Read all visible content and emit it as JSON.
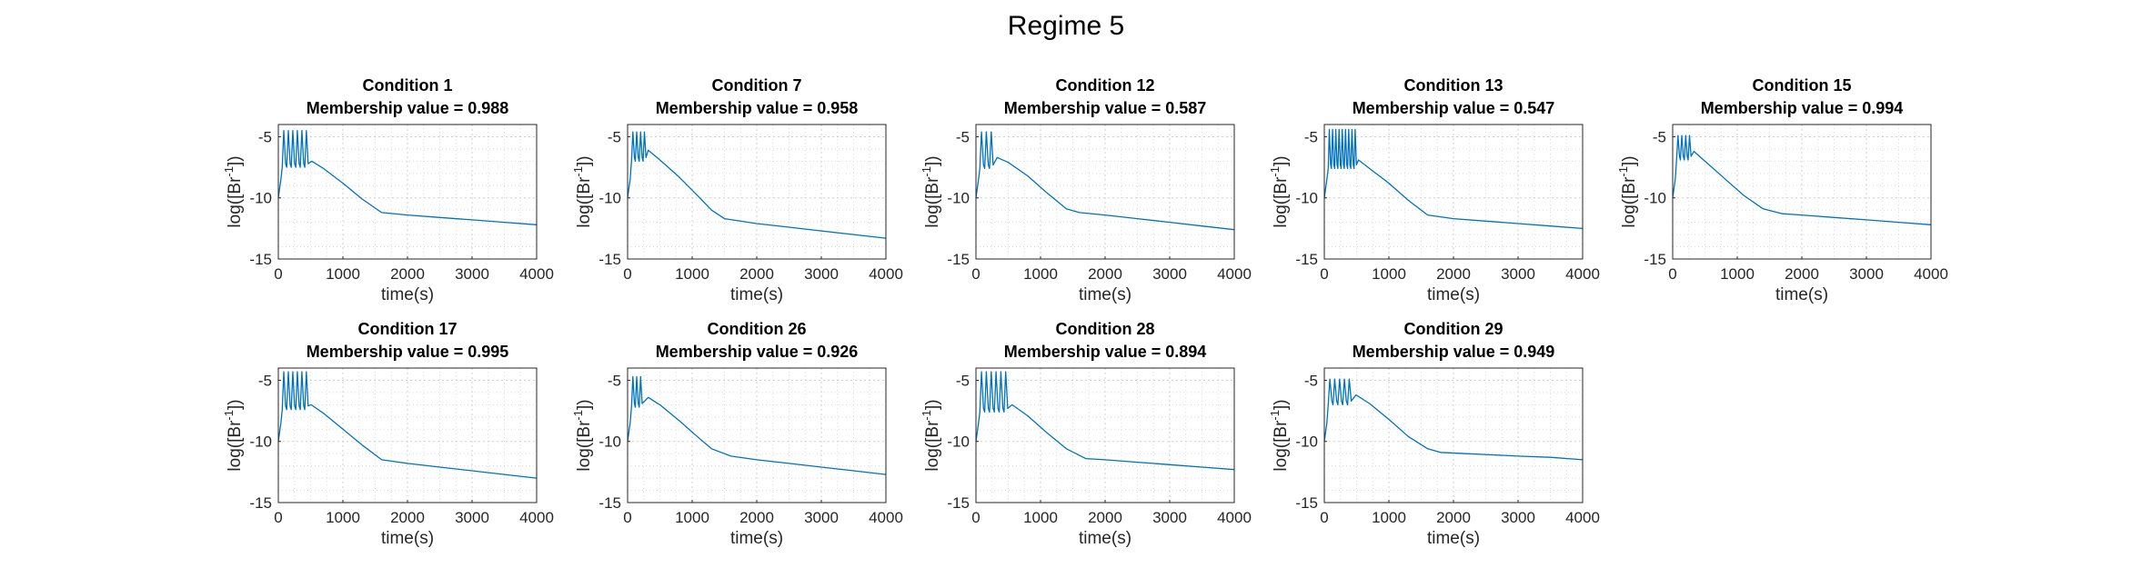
{
  "figure": {
    "title": "Regime 5",
    "line_color": "#0072BD",
    "grid_color": "#dcdcdc",
    "axis_color": "#262626"
  },
  "chart_data": [
    {
      "type": "line",
      "title": "Condition 1",
      "subtitle": "Membership value = 0.988",
      "xlabel": "time(s)",
      "ylabel_base": "log([Br",
      "ylabel_sup": "-1",
      "ylabel_end": "])",
      "xlim": [
        0,
        4000
      ],
      "ylim": [
        -15,
        -4
      ],
      "xticks": [
        0,
        1000,
        2000,
        3000,
        4000
      ],
      "yticks": [
        -15,
        -10,
        -5
      ],
      "xticklabels": [
        "0",
        "1000",
        "2000",
        "3000",
        "4000"
      ],
      "yticklabels": [
        "-15",
        "-10",
        "-5"
      ],
      "grid": true,
      "series": [
        {
          "spikes": {
            "start": 60,
            "count": 6,
            "period": 70,
            "peak": -4.5,
            "trough": -7.5,
            "first_low": -10
          },
          "x": [
            520,
            700,
            1000,
            1300,
            1600,
            2000,
            2500,
            3000,
            3500,
            4000
          ],
          "y": [
            -7.0,
            -7.6,
            -8.8,
            -10.1,
            -11.2,
            -11.4,
            -11.6,
            -11.8,
            -12.0,
            -12.2
          ]
        }
      ]
    },
    {
      "type": "line",
      "title": "Condition 7",
      "subtitle": "Membership value = 0.958",
      "xlabel": "time(s)",
      "ylabel_base": "log([Br",
      "ylabel_sup": "-1",
      "ylabel_end": "])",
      "xlim": [
        0,
        4000
      ],
      "ylim": [
        -15,
        -4
      ],
      "xticks": [
        0,
        1000,
        2000,
        3000,
        4000
      ],
      "yticks": [
        -15,
        -10,
        -5
      ],
      "xticklabels": [
        "0",
        "1000",
        "2000",
        "3000",
        "4000"
      ],
      "yticklabels": [
        "-15",
        "-10",
        "-5"
      ],
      "grid": true,
      "series": [
        {
          "spikes": {
            "start": 60,
            "count": 4,
            "period": 60,
            "peak": -4.6,
            "trough": -7.0,
            "first_low": -10
          },
          "x": [
            320,
            500,
            800,
            1100,
            1300,
            1500,
            2000,
            2500,
            3000,
            3500,
            4000
          ],
          "y": [
            -6.1,
            -6.9,
            -8.3,
            -9.9,
            -11.0,
            -11.7,
            -12.1,
            -12.4,
            -12.7,
            -13.0,
            -13.3
          ]
        }
      ]
    },
    {
      "type": "line",
      "title": "Condition 12",
      "subtitle": "Membership value = 0.587",
      "xlabel": "time(s)",
      "ylabel_base": "log([Br",
      "ylabel_sup": "-1",
      "ylabel_end": "])",
      "xlim": [
        0,
        4000
      ],
      "ylim": [
        -15,
        -4
      ],
      "xticks": [
        0,
        1000,
        2000,
        3000,
        4000
      ],
      "yticks": [
        -15,
        -10,
        -5
      ],
      "xticklabels": [
        "0",
        "1000",
        "2000",
        "3000",
        "4000"
      ],
      "yticklabels": [
        "-15",
        "-10",
        "-5"
      ],
      "grid": true,
      "series": [
        {
          "spikes": {
            "start": 60,
            "count": 3,
            "period": 75,
            "peak": -4.6,
            "trough": -7.6,
            "first_low": -10
          },
          "x": [
            330,
            500,
            800,
            1100,
            1400,
            1600,
            2000,
            2500,
            3000,
            3500,
            4000
          ],
          "y": [
            -6.7,
            -7.1,
            -8.2,
            -9.6,
            -10.9,
            -11.2,
            -11.4,
            -11.7,
            -12.0,
            -12.3,
            -12.6
          ]
        }
      ]
    },
    {
      "type": "line",
      "title": "Condition 13",
      "subtitle": "Membership value = 0.547",
      "xlabel": "time(s)",
      "ylabel_base": "log([Br",
      "ylabel_sup": "-1",
      "ylabel_end": "])",
      "xlim": [
        0,
        4000
      ],
      "ylim": [
        -15,
        -4
      ],
      "xticks": [
        0,
        1000,
        2000,
        3000,
        4000
      ],
      "yticks": [
        -15,
        -10,
        -5
      ],
      "xticklabels": [
        "0",
        "1000",
        "2000",
        "3000",
        "4000"
      ],
      "yticklabels": [
        "-15",
        "-10",
        "-5"
      ],
      "grid": true,
      "series": [
        {
          "spikes": {
            "start": 60,
            "count": 9,
            "period": 50,
            "peak": -4.4,
            "trough": -7.6,
            "first_low": -10
          },
          "x": [
            530,
            700,
            1000,
            1300,
            1600,
            2000,
            2500,
            3000,
            3500,
            4000
          ],
          "y": [
            -6.9,
            -7.6,
            -8.8,
            -10.2,
            -11.4,
            -11.7,
            -11.9,
            -12.1,
            -12.3,
            -12.5
          ]
        }
      ]
    },
    {
      "type": "line",
      "title": "Condition 15",
      "subtitle": "Membership value = 0.994",
      "xlabel": "time(s)",
      "ylabel_base": "log([Br",
      "ylabel_sup": "-1",
      "ylabel_end": "])",
      "xlim": [
        0,
        4000
      ],
      "ylim": [
        -15,
        -4
      ],
      "xticks": [
        0,
        1000,
        2000,
        3000,
        4000
      ],
      "yticks": [
        -15,
        -10,
        -5
      ],
      "xticklabels": [
        "0",
        "1000",
        "2000",
        "3000",
        "4000"
      ],
      "yticklabels": [
        "-15",
        "-10",
        "-5"
      ],
      "grid": true,
      "series": [
        {
          "spikes": {
            "start": 60,
            "count": 4,
            "period": 60,
            "peak": -4.9,
            "trough": -6.9,
            "first_low": -10
          },
          "x": [
            330,
            500,
            800,
            1100,
            1400,
            1700,
            2000,
            2500,
            3000,
            3500,
            4000
          ],
          "y": [
            -6.2,
            -7.0,
            -8.4,
            -9.8,
            -10.9,
            -11.3,
            -11.4,
            -11.6,
            -11.8,
            -12.0,
            -12.2
          ]
        }
      ]
    },
    {
      "type": "line",
      "title": "Condition 17",
      "subtitle": "Membership value = 0.995",
      "xlabel": "time(s)",
      "ylabel_base": "log([Br",
      "ylabel_sup": "-1",
      "ylabel_end": "])",
      "xlim": [
        0,
        4000
      ],
      "ylim": [
        -15,
        -4
      ],
      "xticks": [
        0,
        1000,
        2000,
        3000,
        4000
      ],
      "yticks": [
        -15,
        -10,
        -5
      ],
      "xticklabels": [
        "0",
        "1000",
        "2000",
        "3000",
        "4000"
      ],
      "yticklabels": [
        "-15",
        "-10",
        "-5"
      ],
      "grid": true,
      "series": [
        {
          "spikes": {
            "start": 60,
            "count": 6,
            "period": 70,
            "peak": -4.3,
            "trough": -7.4,
            "first_low": -10
          },
          "x": [
            510,
            700,
            1000,
            1300,
            1600,
            2000,
            2500,
            3000,
            3500,
            4000
          ],
          "y": [
            -7.0,
            -7.7,
            -9.0,
            -10.3,
            -11.5,
            -11.8,
            -12.1,
            -12.4,
            -12.7,
            -13.0
          ]
        }
      ]
    },
    {
      "type": "line",
      "title": "Condition 26",
      "subtitle": "Membership value = 0.926",
      "xlabel": "time(s)",
      "ylabel_base": "log([Br",
      "ylabel_sup": "-1",
      "ylabel_end": "])",
      "xlim": [
        0,
        4000
      ],
      "ylim": [
        -15,
        -4
      ],
      "xticks": [
        0,
        1000,
        2000,
        3000,
        4000
      ],
      "yticks": [
        -15,
        -10,
        -5
      ],
      "xticklabels": [
        "0",
        "1000",
        "2000",
        "3000",
        "4000"
      ],
      "yticklabels": [
        "-15",
        "-10",
        "-5"
      ],
      "grid": true,
      "series": [
        {
          "spikes": {
            "start": 60,
            "count": 3,
            "period": 60,
            "peak": -4.7,
            "trough": -7.2,
            "first_low": -10
          },
          "x": [
            320,
            500,
            800,
            1100,
            1300,
            1600,
            2000,
            2500,
            3000,
            3500,
            4000
          ],
          "y": [
            -6.4,
            -7.0,
            -8.3,
            -9.7,
            -10.6,
            -11.2,
            -11.5,
            -11.8,
            -12.1,
            -12.4,
            -12.7
          ]
        }
      ]
    },
    {
      "type": "line",
      "title": "Condition 28",
      "subtitle": "Membership value = 0.894",
      "xlabel": "time(s)",
      "ylabel_base": "log([Br",
      "ylabel_sup": "-1",
      "ylabel_end": "])",
      "xlim": [
        0,
        4000
      ],
      "ylim": [
        -15,
        -4
      ],
      "xticks": [
        0,
        1000,
        2000,
        3000,
        4000
      ],
      "yticks": [
        -15,
        -10,
        -5
      ],
      "xticklabels": [
        "0",
        "1000",
        "2000",
        "3000",
        "4000"
      ],
      "yticklabels": [
        "-15",
        "-10",
        "-5"
      ],
      "grid": true,
      "series": [
        {
          "spikes": {
            "start": 60,
            "count": 6,
            "period": 75,
            "peak": -4.3,
            "trough": -7.6,
            "first_low": -10
          },
          "x": [
            560,
            800,
            1100,
            1400,
            1700,
            2000,
            2500,
            3000,
            3500,
            4000
          ],
          "y": [
            -7.0,
            -7.9,
            -9.3,
            -10.6,
            -11.4,
            -11.5,
            -11.7,
            -11.9,
            -12.1,
            -12.3
          ]
        }
      ]
    },
    {
      "type": "line",
      "title": "Condition 29",
      "subtitle": "Membership value = 0.949",
      "xlabel": "time(s)",
      "ylabel_base": "log([Br",
      "ylabel_sup": "-1",
      "ylabel_end": "])",
      "xlim": [
        0,
        4000
      ],
      "ylim": [
        -15,
        -4
      ],
      "xticks": [
        0,
        1000,
        2000,
        3000,
        4000
      ],
      "yticks": [
        -15,
        -10,
        -5
      ],
      "xticklabels": [
        "0",
        "1000",
        "2000",
        "3000",
        "4000"
      ],
      "yticklabels": [
        "-15",
        "-10",
        "-5"
      ],
      "grid": true,
      "series": [
        {
          "spikes": {
            "start": 60,
            "count": 5,
            "period": 75,
            "peak": -4.9,
            "trough": -7.0,
            "first_low": -10
          },
          "x": [
            490,
            700,
            1000,
            1300,
            1600,
            1800,
            2200,
            2600,
            3000,
            3500,
            4000
          ],
          "y": [
            -6.2,
            -6.9,
            -8.2,
            -9.6,
            -10.6,
            -10.9,
            -11.0,
            -11.1,
            -11.2,
            -11.3,
            -11.5
          ]
        }
      ]
    }
  ]
}
